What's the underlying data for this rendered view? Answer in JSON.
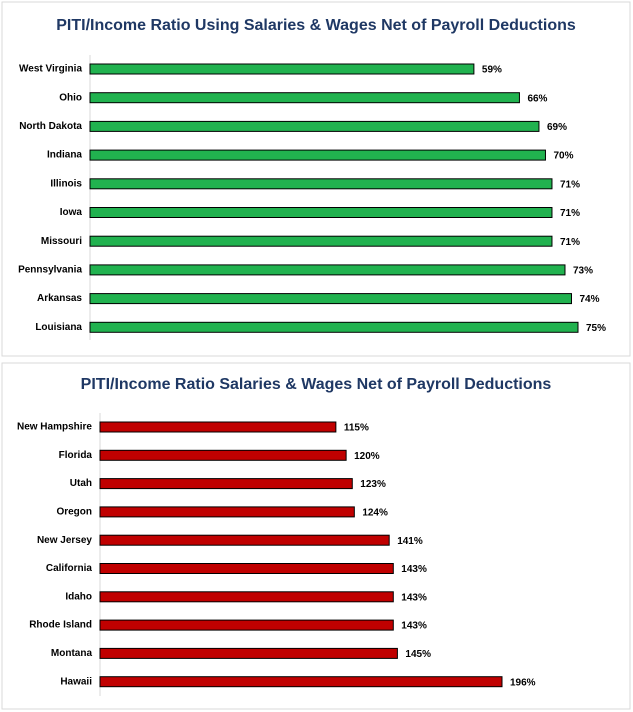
{
  "chart_data": [
    {
      "type": "bar",
      "orientation": "horizontal",
      "title": "PITI/Income Ratio Using Salaries & Wages Net of Payroll Deductions",
      "categories": [
        "West Virginia",
        "Ohio",
        "North Dakota",
        "Indiana",
        "Illinois",
        "Iowa",
        "Missouri",
        "Pennsylvania",
        "Arkansas",
        "Louisiana"
      ],
      "values": [
        59,
        66,
        69,
        70,
        71,
        71,
        71,
        73,
        74,
        75
      ],
      "value_labels": [
        "59%",
        "66%",
        "69%",
        "70%",
        "71%",
        "71%",
        "71%",
        "73%",
        "74%",
        "75%"
      ],
      "color": "#21b24f"
    },
    {
      "type": "bar",
      "orientation": "horizontal",
      "title": "PITI/Income Ratio Salaries & Wages Net of Payroll Deductions",
      "categories": [
        "New Hampshire",
        "Florida",
        "Utah",
        "Oregon",
        "New Jersey",
        "California",
        "Idaho",
        "Rhode Island",
        "Montana",
        "Hawaii"
      ],
      "values": [
        115,
        120,
        123,
        124,
        141,
        143,
        143,
        143,
        145,
        196
      ],
      "value_labels": [
        "115%",
        "120%",
        "123%",
        "124%",
        "141%",
        "143%",
        "143%",
        "143%",
        "145%",
        "196%"
      ],
      "color": "#c00000"
    }
  ]
}
